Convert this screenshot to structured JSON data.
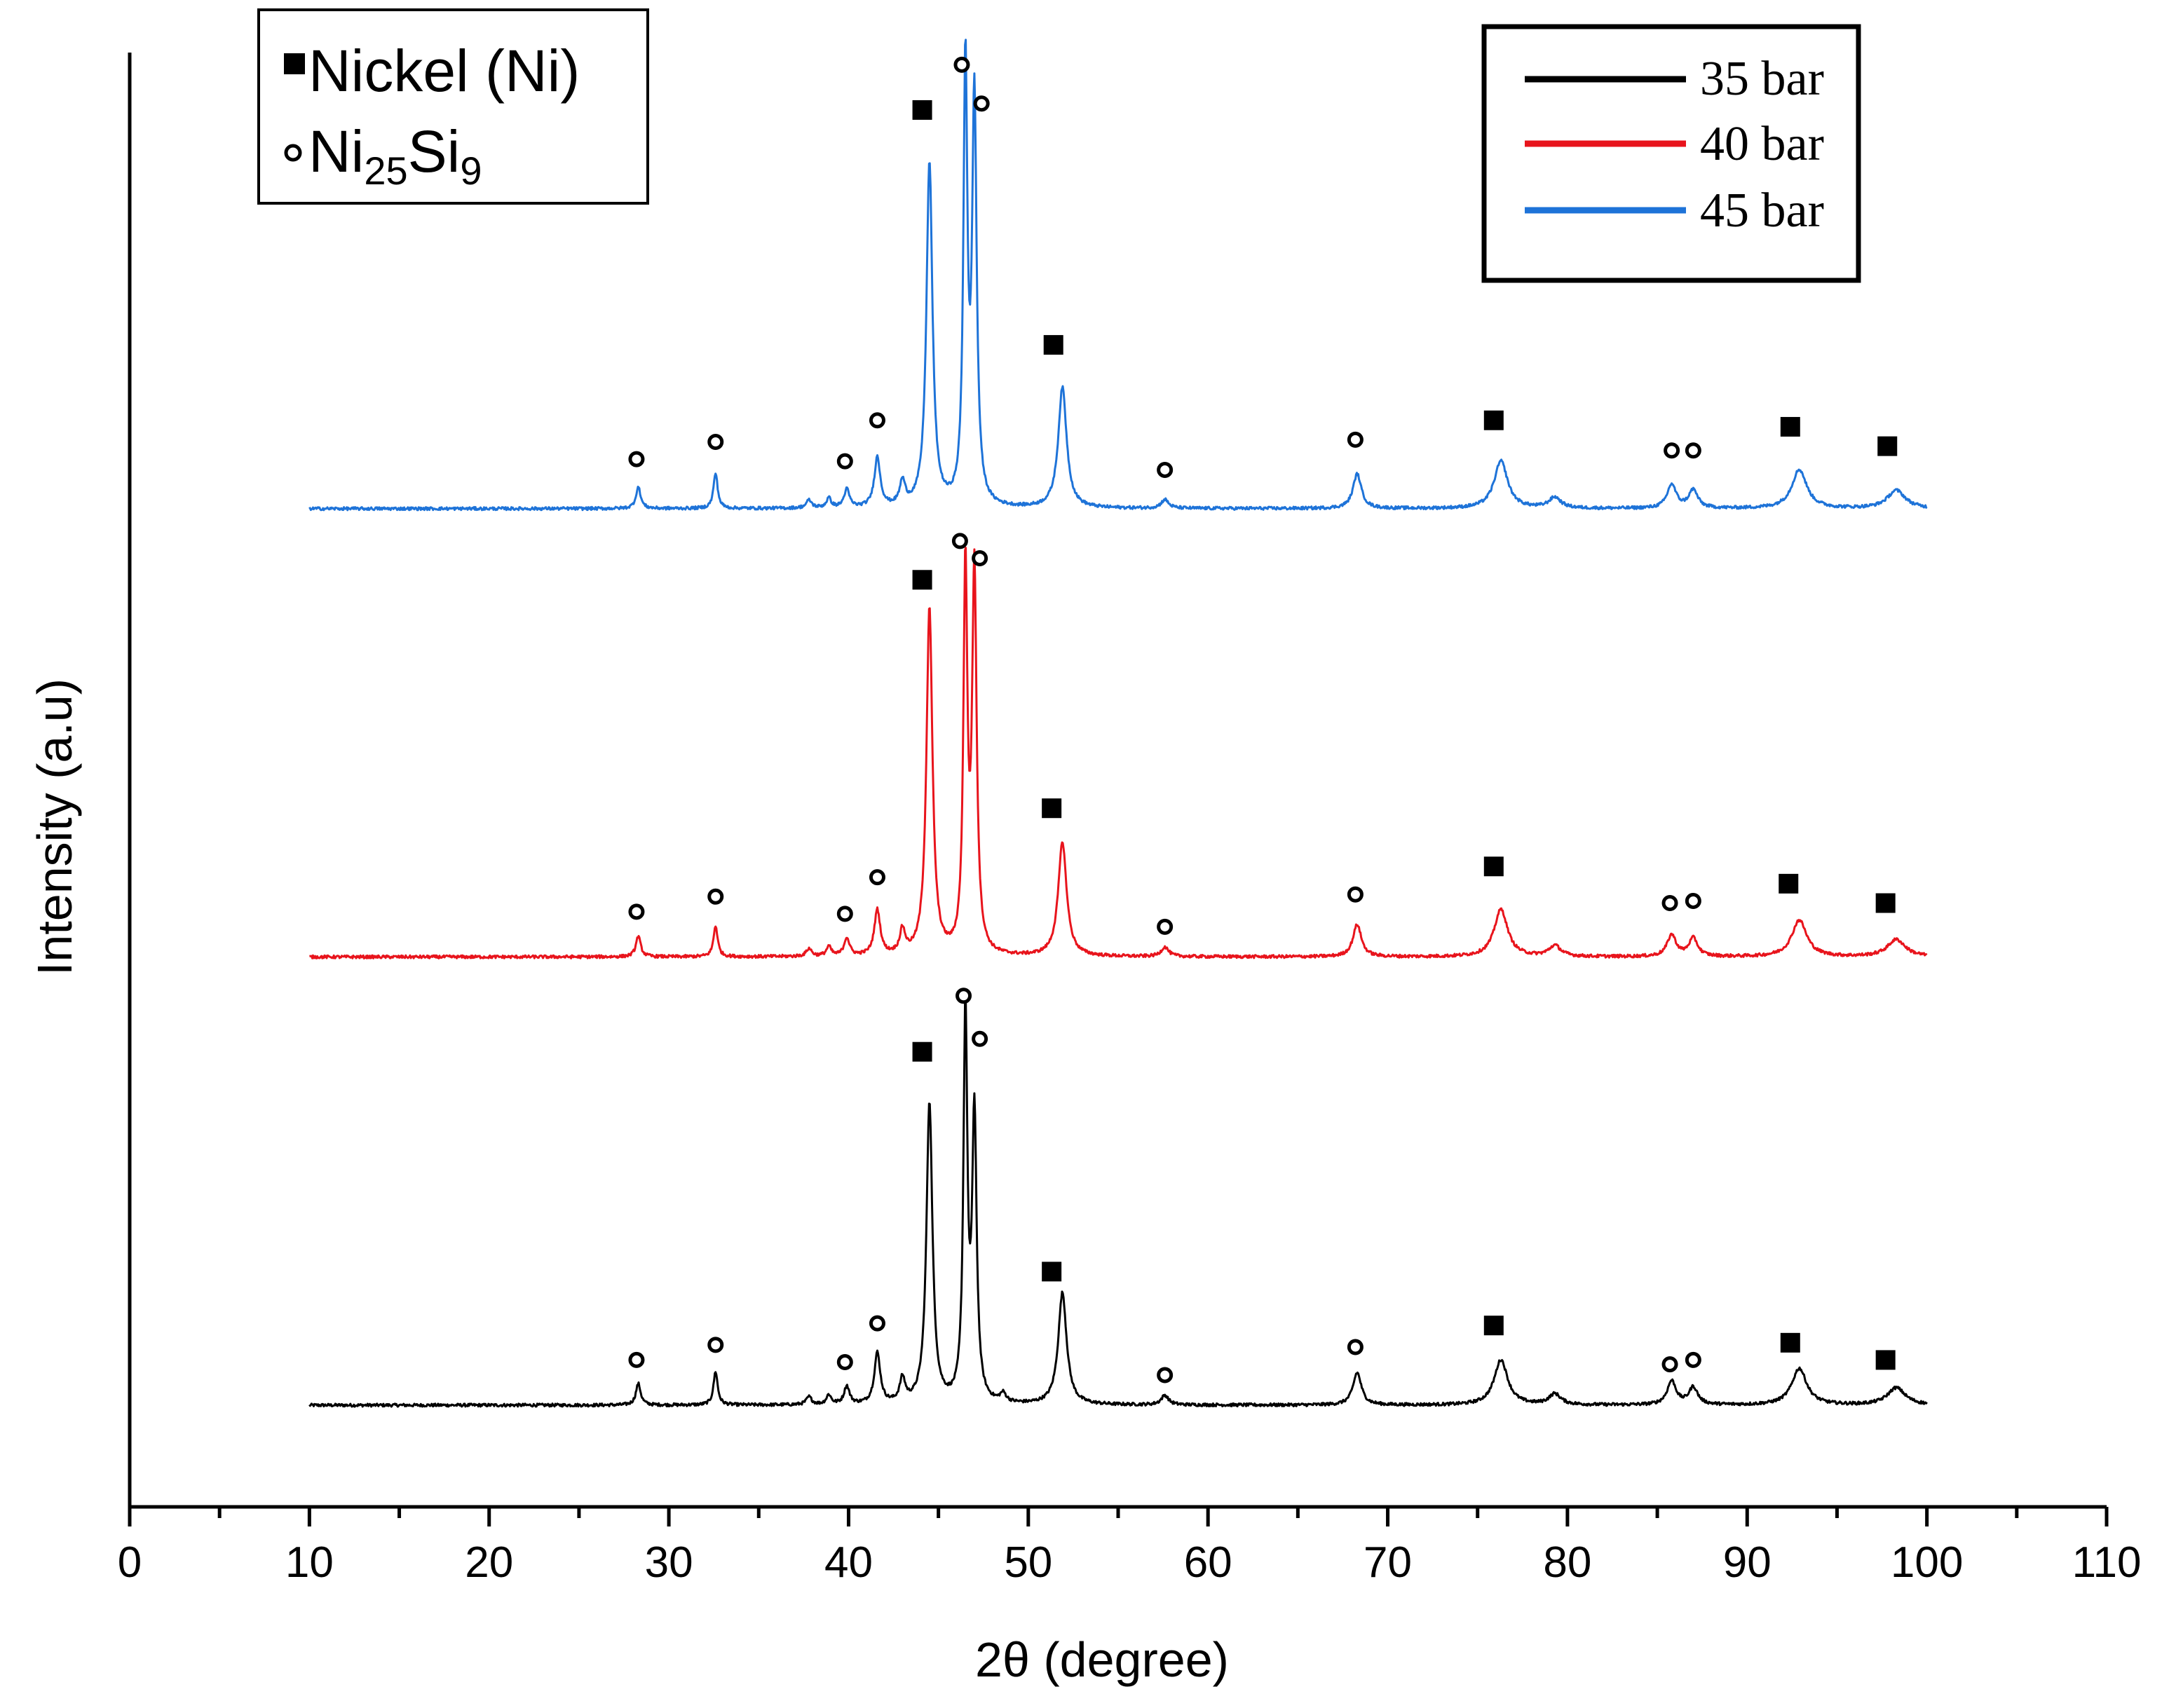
{
  "chart_data": {
    "type": "line",
    "title": "",
    "xlabel": "2θ (degree)",
    "ylabel": "Intensity (a.u)",
    "xlim": [
      0,
      110
    ],
    "x_ticks": [
      0,
      10,
      20,
      30,
      40,
      50,
      60,
      70,
      80,
      90,
      100,
      110
    ],
    "x_minor_step": 5,
    "y_ticks_shown": false,
    "grid": false,
    "series_legend_position": "top-right",
    "phase_legend_position": "top-left",
    "baseline_noise": 0.035,
    "series": [
      {
        "name": "35 bar",
        "color": "#000000",
        "x_range": [
          10,
          100
        ],
        "baseline_offset": 0.0,
        "peaks": [
          {
            "pos": 28.3,
            "h": 0.5,
            "w": 0.16
          },
          {
            "pos": 32.6,
            "h": 0.78,
            "w": 0.14
          },
          {
            "pos": 37.8,
            "h": 0.18,
            "w": 0.18
          },
          {
            "pos": 38.9,
            "h": 0.22,
            "w": 0.16
          },
          {
            "pos": 39.9,
            "h": 0.42,
            "w": 0.18
          },
          {
            "pos": 41.6,
            "h": 1.18,
            "w": 0.2
          },
          {
            "pos": 43.0,
            "h": 0.55,
            "w": 0.18
          },
          {
            "pos": 44.5,
            "h": 7.0,
            "w": 0.2
          },
          {
            "pos": 46.5,
            "h": 9.0,
            "w": 0.13
          },
          {
            "pos": 47.0,
            "h": 6.6,
            "w": 0.15
          },
          {
            "pos": 48.6,
            "h": 0.2,
            "w": 0.2
          },
          {
            "pos": 51.9,
            "h": 2.6,
            "w": 0.28
          },
          {
            "pos": 57.6,
            "h": 0.22,
            "w": 0.25
          },
          {
            "pos": 68.3,
            "h": 0.75,
            "w": 0.28
          },
          {
            "pos": 76.3,
            "h": 1.05,
            "w": 0.45
          },
          {
            "pos": 79.3,
            "h": 0.25,
            "w": 0.4
          },
          {
            "pos": 85.8,
            "h": 0.55,
            "w": 0.3
          },
          {
            "pos": 87.0,
            "h": 0.4,
            "w": 0.3
          },
          {
            "pos": 92.9,
            "h": 0.85,
            "w": 0.5
          },
          {
            "pos": 98.3,
            "h": 0.4,
            "w": 0.6
          }
        ]
      },
      {
        "name": "40 bar",
        "color": "#e8141c",
        "x_range": [
          10,
          100
        ],
        "baseline_offset": 10.4,
        "peaks": [
          {
            "pos": 28.3,
            "h": 0.48,
            "w": 0.16
          },
          {
            "pos": 32.6,
            "h": 0.72,
            "w": 0.14
          },
          {
            "pos": 37.8,
            "h": 0.18,
            "w": 0.18
          },
          {
            "pos": 38.9,
            "h": 0.22,
            "w": 0.16
          },
          {
            "pos": 39.9,
            "h": 0.42,
            "w": 0.18
          },
          {
            "pos": 41.6,
            "h": 1.05,
            "w": 0.2
          },
          {
            "pos": 43.0,
            "h": 0.55,
            "w": 0.18
          },
          {
            "pos": 44.5,
            "h": 8.05,
            "w": 0.2
          },
          {
            "pos": 46.5,
            "h": 8.85,
            "w": 0.13
          },
          {
            "pos": 47.0,
            "h": 8.8,
            "w": 0.15
          },
          {
            "pos": 51.9,
            "h": 2.65,
            "w": 0.28
          },
          {
            "pos": 57.6,
            "h": 0.22,
            "w": 0.25
          },
          {
            "pos": 68.3,
            "h": 0.75,
            "w": 0.28
          },
          {
            "pos": 76.3,
            "h": 1.1,
            "w": 0.45
          },
          {
            "pos": 79.3,
            "h": 0.25,
            "w": 0.4
          },
          {
            "pos": 85.8,
            "h": 0.5,
            "w": 0.3
          },
          {
            "pos": 87.0,
            "h": 0.42,
            "w": 0.3
          },
          {
            "pos": 92.9,
            "h": 0.85,
            "w": 0.5
          },
          {
            "pos": 98.3,
            "h": 0.4,
            "w": 0.6
          }
        ]
      },
      {
        "name": "45 bar",
        "color": "#1e73d8",
        "x_range": [
          10,
          100
        ],
        "baseline_offset": 20.8,
        "peaks": [
          {
            "pos": 28.3,
            "h": 0.5,
            "w": 0.16
          },
          {
            "pos": 32.6,
            "h": 0.82,
            "w": 0.14
          },
          {
            "pos": 37.8,
            "h": 0.18,
            "w": 0.18
          },
          {
            "pos": 38.9,
            "h": 0.22,
            "w": 0.16
          },
          {
            "pos": 39.9,
            "h": 0.42,
            "w": 0.18
          },
          {
            "pos": 41.6,
            "h": 1.15,
            "w": 0.2
          },
          {
            "pos": 43.0,
            "h": 0.55,
            "w": 0.18
          },
          {
            "pos": 44.5,
            "h": 8.0,
            "w": 0.2
          },
          {
            "pos": 46.5,
            "h": 10.2,
            "w": 0.13
          },
          {
            "pos": 47.0,
            "h": 9.4,
            "w": 0.15
          },
          {
            "pos": 51.9,
            "h": 2.8,
            "w": 0.28
          },
          {
            "pos": 57.6,
            "h": 0.2,
            "w": 0.25
          },
          {
            "pos": 68.3,
            "h": 0.8,
            "w": 0.28
          },
          {
            "pos": 76.3,
            "h": 1.1,
            "w": 0.45
          },
          {
            "pos": 79.3,
            "h": 0.25,
            "w": 0.4
          },
          {
            "pos": 85.8,
            "h": 0.55,
            "w": 0.3
          },
          {
            "pos": 87.0,
            "h": 0.42,
            "w": 0.3
          },
          {
            "pos": 92.9,
            "h": 0.9,
            "w": 0.5
          },
          {
            "pos": 98.3,
            "h": 0.42,
            "w": 0.6
          }
        ]
      }
    ],
    "phase_markers": [
      {
        "series": "45 bar",
        "points": [
          {
            "x": 28.2,
            "y": 21.95,
            "phase": "Ni25Si9"
          },
          {
            "x": 32.6,
            "y": 22.35,
            "phase": "Ni25Si9"
          },
          {
            "x": 39.8,
            "y": 21.9,
            "phase": "Ni25Si9"
          },
          {
            "x": 41.6,
            "y": 22.85,
            "phase": "Ni25Si9"
          },
          {
            "x": 44.1,
            "y": 30.05,
            "phase": "Nickel (Ni)"
          },
          {
            "x": 46.3,
            "y": 31.1,
            "phase": "Ni25Si9"
          },
          {
            "x": 47.4,
            "y": 30.2,
            "phase": "Ni25Si9"
          },
          {
            "x": 51.4,
            "y": 24.6,
            "phase": "Nickel (Ni)"
          },
          {
            "x": 57.6,
            "y": 21.7,
            "phase": "Ni25Si9"
          },
          {
            "x": 68.2,
            "y": 22.4,
            "phase": "Ni25Si9"
          },
          {
            "x": 75.9,
            "y": 22.85,
            "phase": "Nickel (Ni)"
          },
          {
            "x": 85.8,
            "y": 22.15,
            "phase": "Ni25Si9"
          },
          {
            "x": 87.0,
            "y": 22.15,
            "phase": "Ni25Si9"
          },
          {
            "x": 92.4,
            "y": 22.7,
            "phase": "Nickel (Ni)"
          },
          {
            "x": 97.8,
            "y": 22.25,
            "phase": "Nickel (Ni)"
          }
        ]
      },
      {
        "series": "40 bar",
        "points": [
          {
            "x": 28.2,
            "y": 11.45,
            "phase": "Ni25Si9"
          },
          {
            "x": 32.6,
            "y": 11.8,
            "phase": "Ni25Si9"
          },
          {
            "x": 39.8,
            "y": 11.4,
            "phase": "Ni25Si9"
          },
          {
            "x": 41.6,
            "y": 12.25,
            "phase": "Ni25Si9"
          },
          {
            "x": 44.1,
            "y": 19.15,
            "phase": "Nickel (Ni)"
          },
          {
            "x": 46.2,
            "y": 20.05,
            "phase": "Ni25Si9"
          },
          {
            "x": 47.3,
            "y": 19.65,
            "phase": "Ni25Si9"
          },
          {
            "x": 51.3,
            "y": 13.85,
            "phase": "Nickel (Ni)"
          },
          {
            "x": 57.6,
            "y": 11.1,
            "phase": "Ni25Si9"
          },
          {
            "x": 68.2,
            "y": 11.85,
            "phase": "Ni25Si9"
          },
          {
            "x": 75.9,
            "y": 12.5,
            "phase": "Nickel (Ni)"
          },
          {
            "x": 85.7,
            "y": 11.65,
            "phase": "Ni25Si9"
          },
          {
            "x": 87.0,
            "y": 11.7,
            "phase": "Ni25Si9"
          },
          {
            "x": 92.3,
            "y": 12.1,
            "phase": "Nickel (Ni)"
          },
          {
            "x": 97.7,
            "y": 11.65,
            "phase": "Nickel (Ni)"
          }
        ]
      },
      {
        "series": "35 bar",
        "points": [
          {
            "x": 28.2,
            "y": 1.05,
            "phase": "Ni25Si9"
          },
          {
            "x": 32.6,
            "y": 1.4,
            "phase": "Ni25Si9"
          },
          {
            "x": 39.8,
            "y": 1.0,
            "phase": "Ni25Si9"
          },
          {
            "x": 41.6,
            "y": 1.9,
            "phase": "Ni25Si9"
          },
          {
            "x": 44.1,
            "y": 8.2,
            "phase": "Nickel (Ni)"
          },
          {
            "x": 46.4,
            "y": 9.5,
            "phase": "Ni25Si9"
          },
          {
            "x": 47.3,
            "y": 8.5,
            "phase": "Ni25Si9"
          },
          {
            "x": 51.3,
            "y": 3.1,
            "phase": "Nickel (Ni)"
          },
          {
            "x": 57.6,
            "y": 0.7,
            "phase": "Ni25Si9"
          },
          {
            "x": 68.2,
            "y": 1.35,
            "phase": "Ni25Si9"
          },
          {
            "x": 75.9,
            "y": 1.85,
            "phase": "Nickel (Ni)"
          },
          {
            "x": 85.7,
            "y": 0.95,
            "phase": "Ni25Si9"
          },
          {
            "x": 87.0,
            "y": 1.05,
            "phase": "Ni25Si9"
          },
          {
            "x": 92.4,
            "y": 1.45,
            "phase": "Nickel (Ni)"
          },
          {
            "x": 97.7,
            "y": 1.05,
            "phase": "Nickel (Ni)"
          }
        ]
      }
    ],
    "phase_legend": {
      "ni": {
        "symbol": "filled-square-icon",
        "label": "Nickel (Ni)"
      },
      "silicide": {
        "symbol": "open-circle-icon",
        "base": "Ni",
        "sub1": "25",
        "mid": "Si",
        "sub2": "9"
      }
    }
  }
}
